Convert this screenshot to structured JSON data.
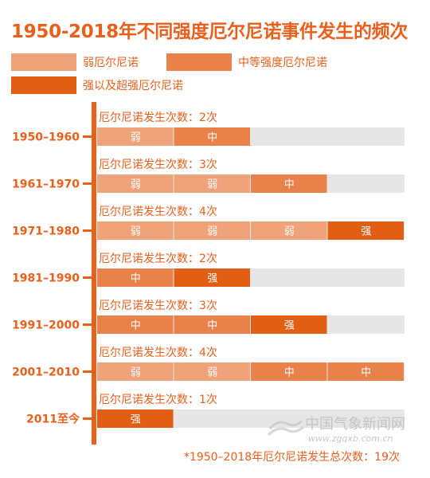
{
  "title": "1950-2018年不同强度厄尔尼诺事件发生的频次",
  "legend": [
    {
      "label": "弱厄尔尼诺",
      "key": "weak"
    },
    {
      "label": "中等强度厄尔尼诺",
      "key": "moderate"
    },
    {
      "label": "强以及超强厄尔尼诺",
      "key": "strong"
    }
  ],
  "colors": {
    "weak": "#f0a27a",
    "moderate": "#e8814a",
    "strong": "#e05f15",
    "track": "#e6e6e6",
    "axis": "#e8601c",
    "text": "#e8601c"
  },
  "chart_data": {
    "type": "bar",
    "title": "1950-2018年不同强度厄尔尼诺事件发生的频次",
    "categories": [
      "1950–1960",
      "1961–1970",
      "1971–1980",
      "1981–1990",
      "1991–2000",
      "2001–2010",
      "2011至今"
    ],
    "count_label_prefix": "厄尔尼诺发生次数：",
    "count_label_suffix": "次",
    "segment_labels": {
      "weak": "弱",
      "moderate": "中",
      "strong": "强"
    },
    "rows": [
      {
        "period": "1950–1960",
        "count": 2,
        "events": [
          "weak",
          "moderate"
        ]
      },
      {
        "period": "1961–1970",
        "count": 3,
        "events": [
          "weak",
          "weak",
          "moderate"
        ]
      },
      {
        "period": "1971–1980",
        "count": 4,
        "events": [
          "weak",
          "weak",
          "weak",
          "strong"
        ]
      },
      {
        "period": "1981–1990",
        "count": 2,
        "events": [
          "moderate",
          "strong"
        ]
      },
      {
        "period": "1991–2000",
        "count": 3,
        "events": [
          "moderate",
          "moderate",
          "strong"
        ]
      },
      {
        "period": "2001–2010",
        "count": 4,
        "events": [
          "weak",
          "weak",
          "moderate",
          "moderate"
        ]
      },
      {
        "period": "2011至今",
        "count": 1,
        "events": [
          "strong"
        ]
      }
    ],
    "max_count": 4,
    "total_label": "*1950–2018年厄尔尼诺发生总次数：19次"
  },
  "watermark": {
    "text": "中国气象新闻网",
    "url": "www.zgqxb.com.cn"
  }
}
